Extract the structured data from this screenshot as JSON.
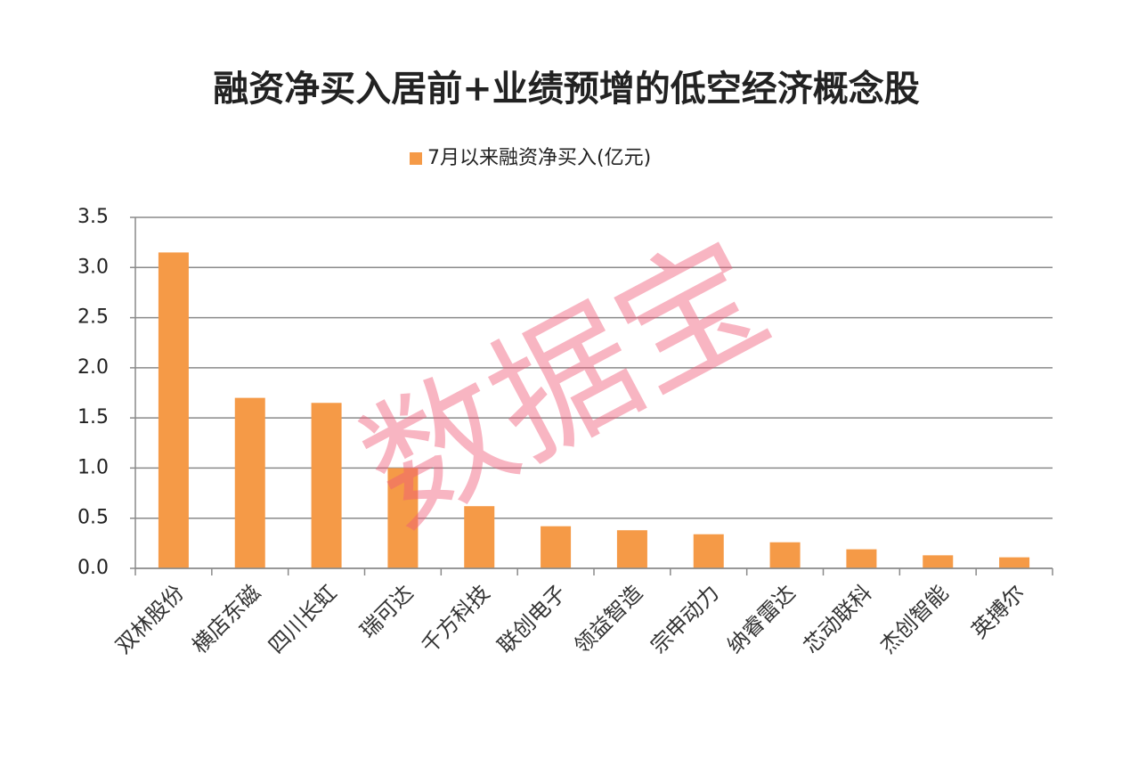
{
  "chart_data": {
    "type": "bar",
    "title": "融资净买入居前+业绩预增的低空经济概念股",
    "watermark": "数据宝",
    "categories": [
      "双林股份",
      "横店东磁",
      "四川长虹",
      "瑞可达",
      "千方科技",
      "联创电子",
      "领益智造",
      "宗申动力",
      "纳睿雷达",
      "芯动联科",
      "杰创智能",
      "英搏尔"
    ],
    "series": [
      {
        "name": "7月以来融资净买入(亿元)",
        "color": "#f59a47",
        "values": [
          3.15,
          1.7,
          1.65,
          1.0,
          0.62,
          0.42,
          0.38,
          0.34,
          0.26,
          0.19,
          0.13,
          0.11
        ]
      }
    ],
    "ylim": [
      0,
      3.5
    ],
    "yticks": [
      {
        "value": 0,
        "label": "0.0"
      },
      0.5,
      {
        "value": 1,
        "label": "1.0"
      },
      1.5,
      {
        "value": 2,
        "label": "2.0"
      },
      2.5,
      {
        "value": 3,
        "label": "3.0"
      },
      3.5
    ],
    "grid": true,
    "legend": "top"
  }
}
